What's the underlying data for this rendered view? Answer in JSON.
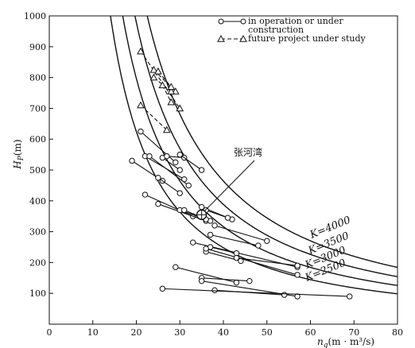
{
  "chart_data": {
    "type": "scatter",
    "ylabel": "H_P(m)",
    "ylabel_main": "H",
    "ylabel_sub": "P",
    "ylabel_unit": "(m)",
    "xlabel": "n_q(m·m³/s)",
    "xlabel_main": "n",
    "xlabel_sub": "q",
    "xlabel_unit": "(m · m³/s)",
    "xlim": [
      0,
      80
    ],
    "ylim": [
      0,
      1000
    ],
    "x_ticks": [
      "0",
      "10",
      "20",
      "30",
      "40",
      "50",
      "60",
      "70",
      "80"
    ],
    "y_ticks": [
      "100",
      "200",
      "300",
      "400",
      "500",
      "600",
      "700",
      "800",
      "900",
      "1000"
    ],
    "legend": [
      {
        "label_line1": "in operation or under",
        "label_line2": "construction",
        "marker": "circle",
        "style": "solid"
      },
      {
        "label_line1": "future project under study",
        "label_line2": "",
        "marker": "triangle",
        "style": "dashed"
      }
    ],
    "curves": [
      {
        "label": "K=2500",
        "K": 2500
      },
      {
        "label": "K=3000",
        "K": 3000
      },
      {
        "label": "K=3500",
        "K": 3500
      },
      {
        "label": "K=4000",
        "K": 4000
      }
    ],
    "annotation": {
      "text": "张河湾",
      "x": 35,
      "y": 355
    },
    "series": [
      {
        "name": "in operation or under construction",
        "segments": [
          [
            [
              19,
              530
            ],
            [
              26,
              465
            ]
          ],
          [
            [
              21,
              625
            ],
            [
              29,
              525
            ]
          ],
          [
            [
              22,
              545
            ],
            [
              31,
              470
            ]
          ],
          [
            [
              23,
              545
            ],
            [
              32,
              450
            ]
          ],
          [
            [
              25,
              475
            ],
            [
              30,
              425
            ]
          ],
          [
            [
              26,
              540
            ],
            [
              30,
              500
            ]
          ],
          [
            [
              27,
              545
            ],
            [
              31,
              540
            ]
          ],
          [
            [
              30,
              550
            ],
            [
              35,
              500
            ]
          ],
          [
            [
              22,
              420
            ],
            [
              33,
              350
            ]
          ],
          [
            [
              25,
              390
            ],
            [
              36,
              335
            ]
          ],
          [
            [
              30,
              370
            ],
            [
              37,
              335
            ]
          ],
          [
            [
              31,
              370
            ],
            [
              36,
              340
            ]
          ],
          [
            [
              35,
              380
            ],
            [
              42,
              340
            ]
          ],
          [
            [
              36,
              370
            ],
            [
              41,
              345
            ]
          ],
          [
            [
              38,
              320
            ],
            [
              50,
              270
            ]
          ],
          [
            [
              37,
              290
            ],
            [
              48,
              255
            ]
          ],
          [
            [
              33,
              265
            ],
            [
              57,
              185
            ]
          ],
          [
            [
              36,
              235
            ],
            [
              44,
              205
            ]
          ],
          [
            [
              37,
              250
            ],
            [
              43,
              230
            ]
          ],
          [
            [
              36,
              245
            ],
            [
              57,
              160
            ]
          ],
          [
            [
              29,
              185
            ],
            [
              43,
              135
            ]
          ],
          [
            [
              35,
              150
            ],
            [
              46,
              140
            ]
          ],
          [
            [
              35,
              140
            ],
            [
              57,
              90
            ]
          ],
          [
            [
              38,
              110
            ],
            [
              54,
              95
            ]
          ],
          [
            [
              26,
              115
            ],
            [
              69,
              90
            ]
          ],
          [
            [
              43,
              215
            ],
            [
              57,
              190
            ]
          ]
        ]
      },
      {
        "name": "future project under study",
        "segments": [
          [
            [
              21,
              885
            ],
            [
              30,
              700
            ]
          ],
          [
            [
              24,
              825
            ],
            [
              29,
              755
            ]
          ],
          [
            [
              24,
              800
            ],
            [
              28,
              755
            ]
          ],
          [
            [
              25,
              820
            ],
            [
              28,
              770
            ]
          ],
          [
            [
              21,
              710
            ],
            [
              27,
              630
            ]
          ],
          [
            [
              26,
              775
            ],
            [
              28,
              720
            ]
          ]
        ]
      }
    ]
  }
}
